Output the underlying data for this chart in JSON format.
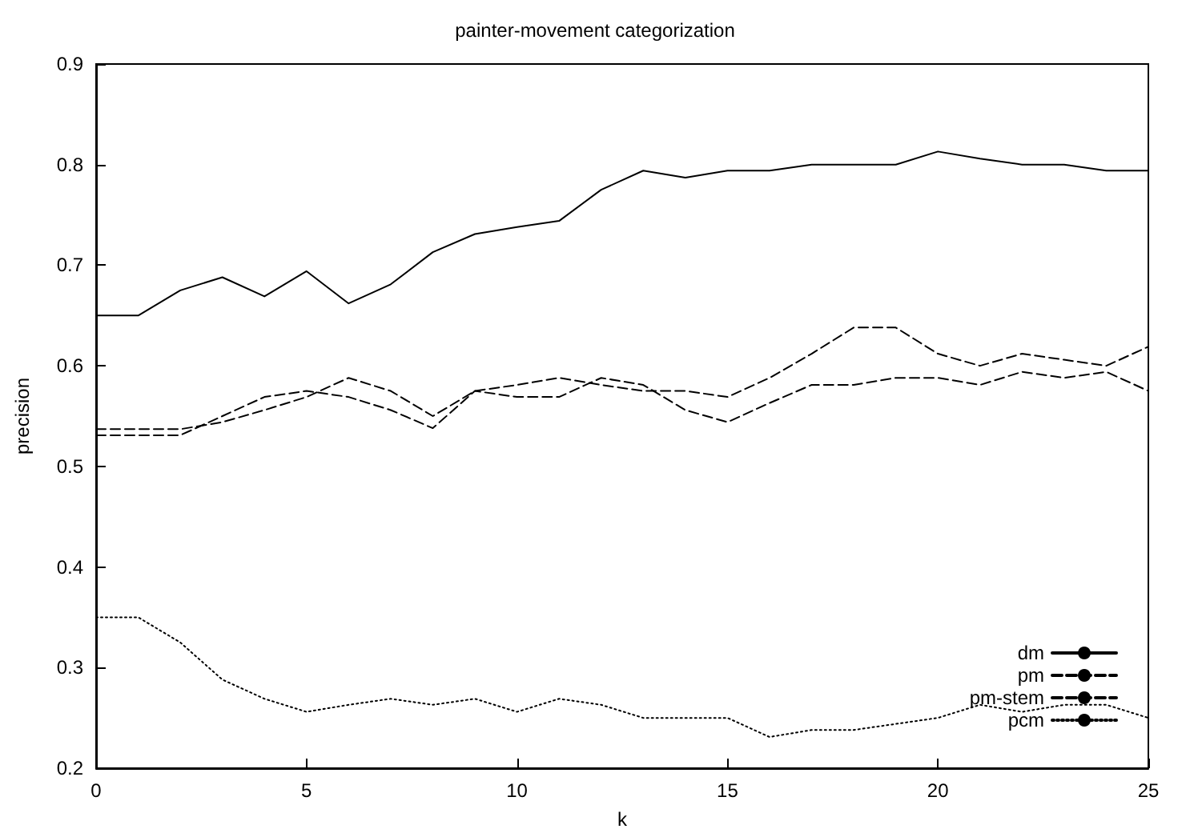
{
  "chart_data": {
    "type": "line",
    "title": "painter-movement categorization",
    "xlabel": "k",
    "ylabel": "precision",
    "x": [
      0,
      1,
      2,
      3,
      4,
      5,
      6,
      7,
      8,
      9,
      10,
      11,
      12,
      13,
      14,
      15,
      16,
      17,
      18,
      19,
      20,
      21,
      22,
      23,
      24,
      25
    ],
    "series": [
      {
        "name": "dm",
        "color": "#000000",
        "line_style": "solid",
        "values": [
          0.65,
          0.65,
          0.675,
          0.688,
          0.669,
          0.694,
          0.662,
          0.681,
          0.713,
          0.731,
          0.738,
          0.744,
          0.775,
          0.794,
          0.787,
          0.794,
          0.794,
          0.8,
          0.8,
          0.8,
          0.813,
          0.806,
          0.8,
          0.8,
          0.794,
          0.794
        ]
      },
      {
        "name": "pm",
        "color": "#000000",
        "line_style": "dashed",
        "values": [
          0.537,
          0.537,
          0.537,
          0.544,
          0.556,
          0.569,
          0.588,
          0.575,
          0.55,
          0.575,
          0.581,
          0.588,
          0.581,
          0.575,
          0.575,
          0.569,
          0.588,
          0.612,
          0.638,
          0.638,
          0.612,
          0.6,
          0.612,
          0.606,
          0.6,
          0.619
        ]
      },
      {
        "name": "pm-stem",
        "color": "#000000",
        "line_style": "dashed",
        "values": [
          0.531,
          0.531,
          0.531,
          0.55,
          0.569,
          0.575,
          0.569,
          0.556,
          0.538,
          0.575,
          0.569,
          0.569,
          0.588,
          0.581,
          0.556,
          0.544,
          0.563,
          0.581,
          0.581,
          0.588,
          0.588,
          0.581,
          0.594,
          0.588,
          0.594,
          0.575
        ]
      },
      {
        "name": "pcm",
        "color": "#000000",
        "line_style": "dotted",
        "values": [
          0.35,
          0.35,
          0.325,
          0.288,
          0.269,
          0.256,
          0.263,
          0.269,
          0.263,
          0.269,
          0.256,
          0.269,
          0.263,
          0.25,
          0.25,
          0.25,
          0.231,
          0.238,
          0.238,
          0.244,
          0.25,
          0.263,
          0.256,
          0.263,
          0.263,
          0.25
        ]
      }
    ],
    "xlim": [
      0,
      25
    ],
    "xticks": [
      0,
      5,
      10,
      15,
      20,
      25
    ],
    "ylim": [
      0.2,
      0.9
    ],
    "yticks": [
      0.2,
      0.3,
      0.4,
      0.5,
      0.6,
      0.7,
      0.8,
      0.9
    ],
    "grid": false,
    "legend": "bottom right",
    "marker": "none"
  }
}
